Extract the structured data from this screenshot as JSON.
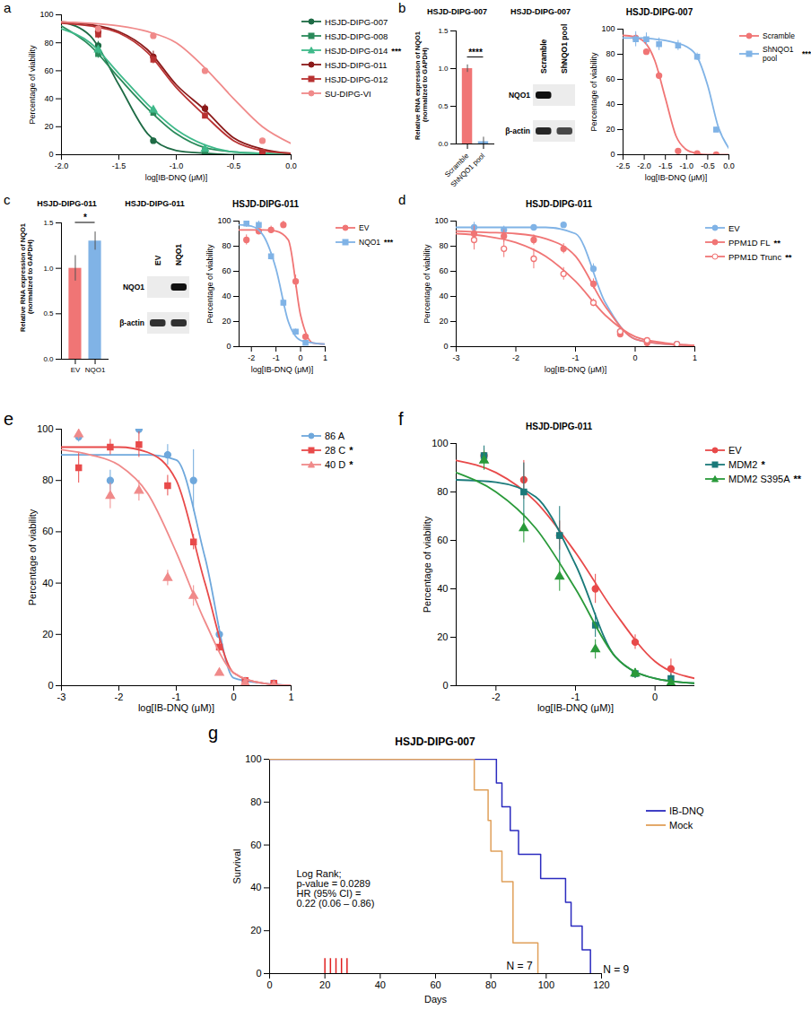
{
  "chart_data": [
    {
      "panel": "a",
      "type": "dose_response",
      "x_label": "log[IB-DNQ (μM)]",
      "y_label": "Percentage of viability",
      "xlim": [
        -2,
        0
      ],
      "xticks": [
        {
          "value": -2,
          "label": "-2.0"
        },
        -1.5,
        {
          "value": -1,
          "label": "-1.0"
        },
        -0.5,
        {
          "value": 0,
          "label": "0.0"
        }
      ],
      "ylim": [
        0,
        100
      ],
      "yticks": [
        0,
        20,
        40,
        60,
        80,
        100
      ],
      "x": [
        -1.68,
        -1.2,
        -0.75,
        -0.25
      ],
      "fit_x": [
        -2,
        -1.75,
        -1.5,
        -1.25,
        -1,
        -0.75,
        -0.5,
        -0.25,
        0
      ],
      "series": [
        {
          "name": "HSJD-DIPG-007",
          "color": "#1e6b45",
          "marker": "circle",
          "values": [
            78,
            10,
            1,
            0
          ],
          "error": [
            3,
            2,
            1,
            0
          ],
          "fit": [
            95,
            85,
            50,
            15,
            3,
            1,
            0,
            0,
            0
          ]
        },
        {
          "name": "HSJD-DIPG-008",
          "color": "#2a8a5a",
          "marker": "square",
          "values": [
            72,
            30,
            3,
            1
          ],
          "error": [
            3,
            2,
            1,
            0
          ],
          "fit": [
            92,
            78,
            55,
            33,
            15,
            5,
            2,
            1,
            0
          ]
        },
        {
          "name": "HSJD-DIPG-014",
          "color": "#3fb98a",
          "marker": "triangle",
          "values": [
            75,
            32,
            4,
            1
          ],
          "error": [
            3,
            2,
            1,
            0
          ],
          "fit": [
            90,
            80,
            58,
            36,
            18,
            7,
            2,
            1,
            0
          ],
          "significance": "***"
        },
        {
          "name": "HSJD-DIPG-011",
          "color": "#8b1a1a",
          "marker": "circle",
          "values": [
            88,
            70,
            33,
            2
          ],
          "error": [
            4,
            4,
            3,
            1
          ],
          "fit": [
            95,
            93,
            88,
            75,
            50,
            32,
            12,
            4,
            1
          ]
        },
        {
          "name": "HSJD-DIPG-012",
          "color": "#b83232",
          "marker": "square",
          "values": [
            86,
            68,
            28,
            2
          ],
          "error": [
            3,
            3,
            2,
            1
          ],
          "fit": [
            94,
            92,
            87,
            73,
            48,
            28,
            10,
            3,
            1
          ]
        },
        {
          "name": "SU-DIPG-VI",
          "color": "#f08a8a",
          "marker": "circle",
          "values": [
            90,
            85,
            60,
            10
          ],
          "error": [
            2,
            2,
            2,
            1
          ],
          "fit": [
            95,
            94,
            92,
            88,
            80,
            62,
            40,
            20,
            8
          ]
        }
      ]
    },
    {
      "panel": "b",
      "type": "bar",
      "title": "HSJD-DIPG-007",
      "y_label": "Relative RNA expression of NQO1 (normalized to GAPDH)",
      "categories": [
        "Scramble",
        "ShNQO1 pool"
      ],
      "values": [
        1.0,
        0.03
      ],
      "error": [
        0.05,
        0.06
      ],
      "colors": [
        "#f07575",
        "#80b3e6"
      ],
      "ylim": [
        0,
        1.5
      ],
      "yticks": [
        {
          "value": 0,
          "label": "0.0"
        },
        0.5,
        {
          "value": 1,
          "label": "1.0"
        },
        1.5
      ],
      "significance": "****"
    },
    {
      "panel": "b",
      "type": "blot",
      "title": "HSJD-DIPG-007",
      "lanes": [
        "Scramble",
        "ShNQO1 pool"
      ],
      "rows": [
        {
          "name": "NQO1",
          "bands": [
            1,
            0
          ]
        },
        {
          "name": "β-actin",
          "bands": [
            0.9,
            0.75
          ]
        }
      ]
    },
    {
      "panel": "b",
      "type": "dose_response",
      "title": "HSJD-DIPG-007",
      "x_label": "log[IB-DNQ (μM)]",
      "y_label": "Percentage of viability",
      "xlim": [
        -2.5,
        0
      ],
      "xticks": [
        -2.5,
        {
          "value": -2,
          "label": "-2.0"
        },
        -1.5,
        {
          "value": -1,
          "label": "-1.0"
        },
        -0.5,
        {
          "value": 0,
          "label": "0.0"
        }
      ],
      "ylim": [
        0,
        100
      ],
      "yticks": [
        0,
        20,
        40,
        60,
        80,
        100
      ],
      "x": [
        -2.2,
        -1.95,
        -1.65,
        -1.2,
        -0.75,
        -0.3
      ],
      "fit_x": [
        -2.5,
        -2.25,
        -2,
        -1.75,
        -1.5,
        -1.25,
        -1,
        -0.75,
        -0.5,
        -0.25,
        0
      ],
      "series": [
        {
          "name": "Scramble",
          "color": "#f07575",
          "marker": "circle",
          "values": [
            93,
            82,
            63,
            3,
            1,
            0
          ],
          "error": [
            3,
            2,
            3,
            1,
            0,
            0
          ],
          "fit": [
            95,
            94,
            90,
            75,
            45,
            15,
            4,
            1,
            0,
            0,
            0
          ]
        },
        {
          "name": "ShNQO1 pool",
          "color": "#80b3e6",
          "marker": "square",
          "values": [
            92,
            92,
            88,
            87,
            78,
            20
          ],
          "error": [
            6,
            5,
            5,
            4,
            3,
            2
          ],
          "fit": [
            93,
            93,
            93,
            92,
            91,
            89,
            86,
            78,
            55,
            22,
            5
          ],
          "significance": "***"
        }
      ]
    },
    {
      "panel": "c",
      "type": "bar",
      "title": "HSJD-DIPG-011",
      "y_label": "Relative RNA expression of NQO1 (normalized to GAPDH)",
      "categories": [
        "EV",
        "NQO1"
      ],
      "values": [
        1.0,
        1.3
      ],
      "error": [
        0.14,
        0.1
      ],
      "colors": [
        "#f07575",
        "#80b3e6"
      ],
      "ylim": [
        0,
        1.5
      ],
      "yticks": [
        {
          "value": 0,
          "label": "0.0"
        },
        0.5,
        {
          "value": 1,
          "label": "1.0"
        },
        1.5
      ],
      "significance": "*"
    },
    {
      "panel": "c",
      "type": "blot",
      "title": "HSJD-DIPG-011",
      "lanes": [
        "EV",
        "NQO1"
      ],
      "rows": [
        {
          "name": "NQO1",
          "bands": [
            0,
            1
          ]
        },
        {
          "name": "β-actin",
          "bands": [
            0.85,
            0.85
          ]
        }
      ]
    },
    {
      "panel": "c",
      "type": "dose_response",
      "title": "HSJD-DIPG-011",
      "x_label": "log[IB-DNQ (μM)]",
      "y_label": "Percentage of viability",
      "xlim": [
        -2.5,
        1
      ],
      "xticks": [
        -2,
        -1,
        0,
        1
      ],
      "ylim": [
        0,
        100
      ],
      "yticks": [
        0,
        20,
        40,
        60,
        80,
        100
      ],
      "x": [
        -2.2,
        -1.7,
        -1.2,
        -0.7,
        -0.2,
        0.2
      ],
      "fit_x": [
        -2.5,
        -2,
        -1.5,
        -1,
        -0.5,
        0,
        0.5,
        1
      ],
      "series": [
        {
          "name": "EV",
          "color": "#f07575",
          "marker": "circle",
          "values": [
            85,
            92,
            93,
            97,
            52,
            8
          ],
          "error": [
            4,
            3,
            3,
            3,
            5,
            2
          ],
          "fit": [
            93,
            93,
            93,
            92,
            85,
            25,
            3,
            2
          ]
        },
        {
          "name": "NQO1",
          "color": "#80b3e6",
          "marker": "square",
          "values": [
            98,
            97,
            72,
            35,
            12,
            3
          ],
          "error": [
            3,
            3,
            3,
            3,
            2,
            1
          ],
          "fit": [
            97,
            96,
            88,
            62,
            20,
            5,
            3,
            2
          ],
          "significance": "***"
        }
      ]
    },
    {
      "panel": "d",
      "type": "dose_response",
      "title": "HSJD-DIPG-011",
      "x_label": "log[IB-DNQ (μM)]",
      "y_label": "Percentage of viability",
      "xlim": [
        -3,
        1
      ],
      "xticks": [
        -3,
        -2,
        -1,
        0,
        1
      ],
      "ylim": [
        0,
        100
      ],
      "yticks": [
        0,
        20,
        40,
        60,
        80,
        100
      ],
      "x": [
        -2.7,
        -2.2,
        -1.7,
        -1.2,
        -0.7,
        -0.25,
        0.2,
        0.7
      ],
      "fit_x": [
        -3,
        -2.5,
        -2,
        -1.5,
        -1,
        -0.5,
        0,
        0.5,
        1
      ],
      "series": [
        {
          "name": "EV",
          "color": "#80b3e6",
          "marker": "circle",
          "values": [
            95,
            93,
            95,
            97,
            62,
            12,
            4,
            2
          ],
          "error": [
            4,
            3,
            2,
            2,
            4,
            2,
            1,
            1
          ],
          "fit": [
            95,
            95,
            95,
            95,
            90,
            35,
            6,
            2,
            1
          ]
        },
        {
          "name": "PPM1D FL",
          "color": "#f07575",
          "marker": "circle",
          "values": [
            90,
            88,
            85,
            78,
            50,
            10,
            3,
            1
          ],
          "error": [
            6,
            5,
            4,
            4,
            4,
            2,
            1,
            1
          ],
          "fit": [
            92,
            91,
            90,
            86,
            72,
            32,
            6,
            2,
            1
          ],
          "significance": "**"
        },
        {
          "name": "PPM1D Trunc",
          "color": "#f07575",
          "marker": "circle-open",
          "values": [
            85,
            78,
            70,
            58,
            35,
            12,
            5,
            2
          ],
          "error": [
            8,
            7,
            8,
            5,
            3,
            2,
            1,
            1
          ],
          "fit": [
            90,
            88,
            83,
            72,
            52,
            25,
            8,
            3,
            1
          ],
          "significance": "**"
        }
      ]
    },
    {
      "panel": "e",
      "type": "dose_response",
      "x_label": "log[IB-DNQ (μM)]",
      "y_label": "Percentage of viability",
      "xlim": [
        -3,
        1
      ],
      "xticks": [
        -3,
        -2,
        -1,
        0,
        1
      ],
      "ylim": [
        0,
        100
      ],
      "yticks": [
        0,
        20,
        40,
        60,
        80,
        100
      ],
      "x": [
        -2.7,
        -2.15,
        -1.65,
        -1.15,
        -0.7,
        -0.25,
        0.2,
        0.7
      ],
      "fit_x": [
        -3,
        -2.5,
        -2,
        -1.5,
        -1,
        -0.5,
        0,
        0.5,
        1
      ],
      "series": [
        {
          "name": "86 A",
          "color": "#6fa8dc",
          "marker": "circle",
          "values": [
            97,
            80,
            100,
            90,
            80,
            20,
            2,
            1
          ],
          "error": [
            2,
            4,
            2,
            4,
            12,
            3,
            1,
            1
          ],
          "fit": [
            90,
            90,
            90,
            90,
            88,
            50,
            3,
            1,
            0
          ]
        },
        {
          "name": "28 C",
          "color": "#e84a4a",
          "marker": "square",
          "values": [
            85,
            93,
            94,
            78,
            56,
            15,
            2,
            1
          ],
          "error": [
            6,
            3,
            5,
            4,
            3,
            2,
            1,
            1
          ],
          "fit": [
            93,
            93,
            93,
            91,
            80,
            40,
            5,
            1,
            0
          ],
          "significance": "*"
        },
        {
          "name": "40 D",
          "color": "#f08a8a",
          "marker": "triangle",
          "values": [
            98,
            74,
            76,
            42,
            35,
            5,
            1,
            0
          ],
          "error": [
            2,
            5,
            4,
            3,
            4,
            1,
            1,
            0
          ],
          "fit": [
            92,
            90,
            86,
            75,
            52,
            25,
            5,
            1,
            0
          ],
          "significance": "*"
        }
      ]
    },
    {
      "panel": "f",
      "type": "dose_response",
      "title": "HSJD-DIPG-011",
      "x_label": "log[IB-DNQ (μM)]",
      "y_label": "Percentage of viability",
      "xlim": [
        -2.5,
        0.5
      ],
      "xticks": [
        -2,
        -1,
        0
      ],
      "ylim": [
        0,
        100
      ],
      "yticks": [
        0,
        20,
        40,
        60,
        80,
        100
      ],
      "x": [
        -2.15,
        -1.65,
        -1.2,
        -0.75,
        -0.25,
        0.2
      ],
      "fit_x": [
        -2.5,
        -2,
        -1.5,
        -1,
        -0.5,
        0,
        0.5
      ],
      "series": [
        {
          "name": "EV",
          "color": "#e84a4a",
          "marker": "circle",
          "values": [
            95,
            85,
            62,
            40,
            18,
            7
          ],
          "error": [
            3,
            8,
            6,
            6,
            3,
            4
          ],
          "fit": [
            93,
            88,
            76,
            55,
            30,
            10,
            3
          ]
        },
        {
          "name": "MDM2",
          "color": "#1a7a7a",
          "marker": "square",
          "values": [
            95,
            80,
            62,
            25,
            5,
            3
          ],
          "error": [
            4,
            12,
            12,
            5,
            2,
            2
          ],
          "fit": [
            85,
            84,
            78,
            50,
            12,
            3,
            1
          ],
          "significance": "*"
        },
        {
          "name": "MDM2 S395A",
          "color": "#2a9a3a",
          "marker": "triangle",
          "values": [
            93,
            65,
            45,
            15,
            5,
            1
          ],
          "error": [
            4,
            6,
            6,
            4,
            2,
            1
          ],
          "fit": [
            88,
            80,
            65,
            40,
            12,
            3,
            1
          ],
          "significance": "**"
        }
      ]
    },
    {
      "panel": "g",
      "type": "survival",
      "title": "HSJD-DIPG-007",
      "x_label": "Days",
      "y_label": "Survival",
      "xlim": [
        0,
        120
      ],
      "xticks": [
        0,
        20,
        40,
        60,
        80,
        100,
        120
      ],
      "ylim": [
        0,
        100
      ],
      "yticks": [
        0,
        20,
        40,
        60,
        80,
        100
      ],
      "annotation": [
        "Log Rank;",
        "p-value = 0.0289",
        "HR (95% CI) =",
        "0.22 (0.06 – 0.86)"
      ],
      "treatment_days": [
        20,
        22,
        24,
        26,
        28
      ],
      "series": [
        {
          "name": "IB-DNQ",
          "color": "#2b2bbf",
          "x": [
            0,
            82,
            84,
            87,
            90,
            98,
            107,
            109,
            113,
            116
          ],
          "values": [
            100,
            88.9,
            77.8,
            66.7,
            55.6,
            44.4,
            33.3,
            22.2,
            11.1,
            0
          ],
          "n_label": "N = 9"
        },
        {
          "name": "Mock",
          "color": "#e0a05a",
          "x": [
            0,
            74,
            79,
            80,
            84,
            88,
            97
          ],
          "values": [
            100,
            85.7,
            71.4,
            57.1,
            42.9,
            14.3,
            0
          ],
          "n_label": "N = 7"
        }
      ]
    }
  ]
}
